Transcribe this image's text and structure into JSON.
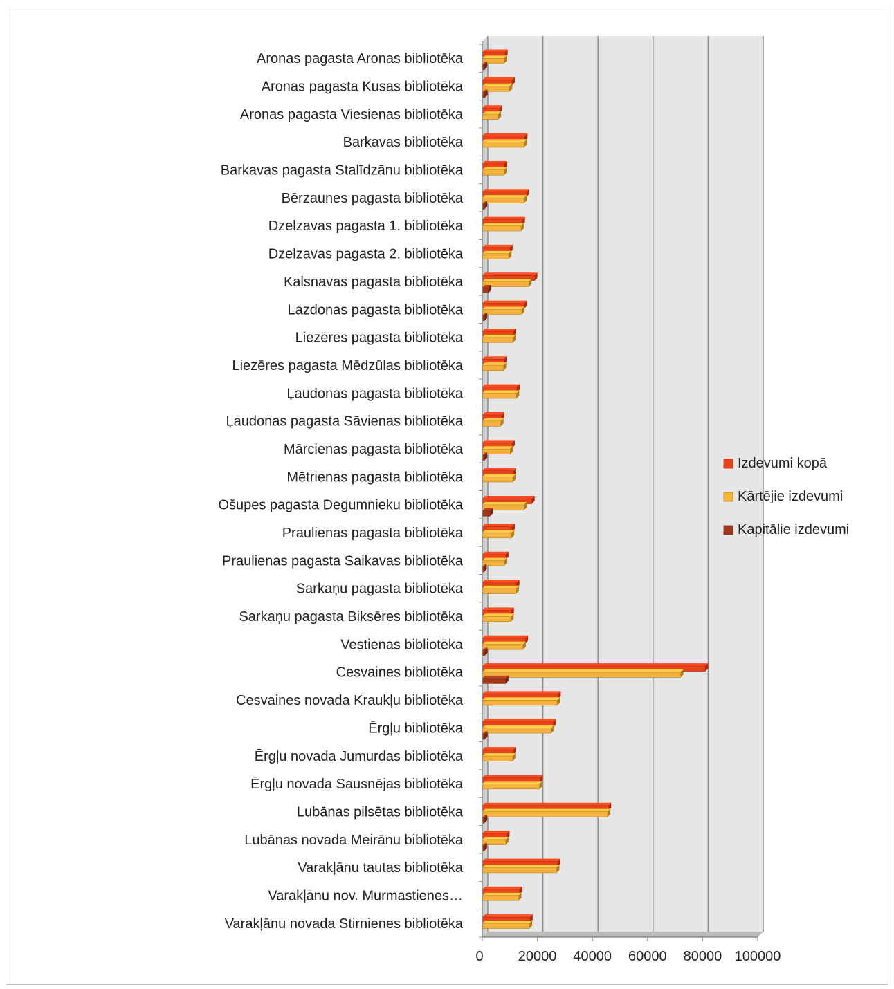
{
  "chart_data": {
    "type": "bar",
    "orientation": "horizontal",
    "style": "3d-clustered",
    "title": "",
    "xlabel": "",
    "ylabel": "",
    "xlim": [
      0,
      100000
    ],
    "ticks": [
      "0",
      "20000",
      "40000",
      "60000",
      "80000",
      "100000"
    ],
    "grid": true,
    "legend_position": "right",
    "categories": [
      "Aronas pagasta Aronas bibliotēka",
      "Aronas pagasta Kusas bibliotēka",
      "Aronas pagasta Viesienas bibliotēka",
      "Barkavas bibliotēka",
      "Barkavas pagasta Stalīdzānu bibliotēka",
      "Bērzaunes pagasta bibliotēka",
      "Dzelzavas pagasta 1. bibliotēka",
      "Dzelzavas pagasta 2. bibliotēka",
      "Kalsnavas pagasta bibliotēka",
      "Lazdonas pagasta bibliotēka",
      "Liezēres pagasta bibliotēka",
      "Liezēres pagasta Mēdzūlas bibliotēka",
      "Ļaudonas pagasta bibliotēka",
      "Ļaudonas pagasta Sāvienas bibliotēka",
      "Mārcienas pagasta bibliotēka",
      "Mētrienas pagasta bibliotēka",
      "Ošupes pagasta Degumnieku bibliotēka",
      "Praulienas pagasta bibliotēka",
      "Praulienas pagasta  Saikavas bibliotēka",
      "Sarkaņu pagasta bibliotēka",
      "Sarkaņu pagasta Biksēres bibliotēka",
      "Vestienas  bibliotēka",
      "Cesvaines bibliotēka",
      "Cesvaines novada Kraukļu bibliotēka",
      "Ērgļu   bibliotēka",
      "Ērgļu novada Jumurdas bibliotēka",
      "Ērgļu novada Sausnējas bibliotēka",
      "Lubānas pilsētas bibliotēka",
      "Lubānas novada Meirānu bibliotēka ",
      "Varakļānu  tautas bibliotēka",
      "Varakļānu nov. Murmastienes…",
      "Varakļānu novada Stirnienes bibliotēka"
    ],
    "series": [
      {
        "name": "Izdevumi kopā",
        "color": "#e8431c",
        "values": [
          8200,
          10800,
          6200,
          15400,
          8000,
          16000,
          14500,
          10000,
          19000,
          15200,
          11200,
          7800,
          12600,
          7000,
          10800,
          11300,
          18000,
          10800,
          8500,
          12500,
          10500,
          15600,
          81000,
          27500,
          25800,
          11200,
          21000,
          45800,
          8900,
          27300,
          13500,
          17300
        ]
      },
      {
        "name": "Kārtējie izdevumi",
        "color": "#f5b13d",
        "values": [
          7900,
          9900,
          5800,
          15200,
          7900,
          15200,
          14100,
          9600,
          16900,
          14300,
          11100,
          7700,
          12400,
          6700,
          10100,
          11100,
          15200,
          10600,
          7900,
          12300,
          10400,
          14800,
          72000,
          27200,
          25000,
          11000,
          20800,
          45500,
          8500,
          27000,
          13200,
          17100
        ]
      },
      {
        "name": "Kapitālie izdevumi",
        "color": "#a0391c",
        "values": [
          800,
          900,
          0,
          0,
          0,
          800,
          0,
          0,
          2200,
          800,
          0,
          0,
          0,
          0,
          800,
          0,
          2800,
          0,
          600,
          0,
          0,
          900,
          8500,
          0,
          900,
          0,
          0,
          800,
          700,
          0,
          0,
          0
        ]
      }
    ]
  }
}
